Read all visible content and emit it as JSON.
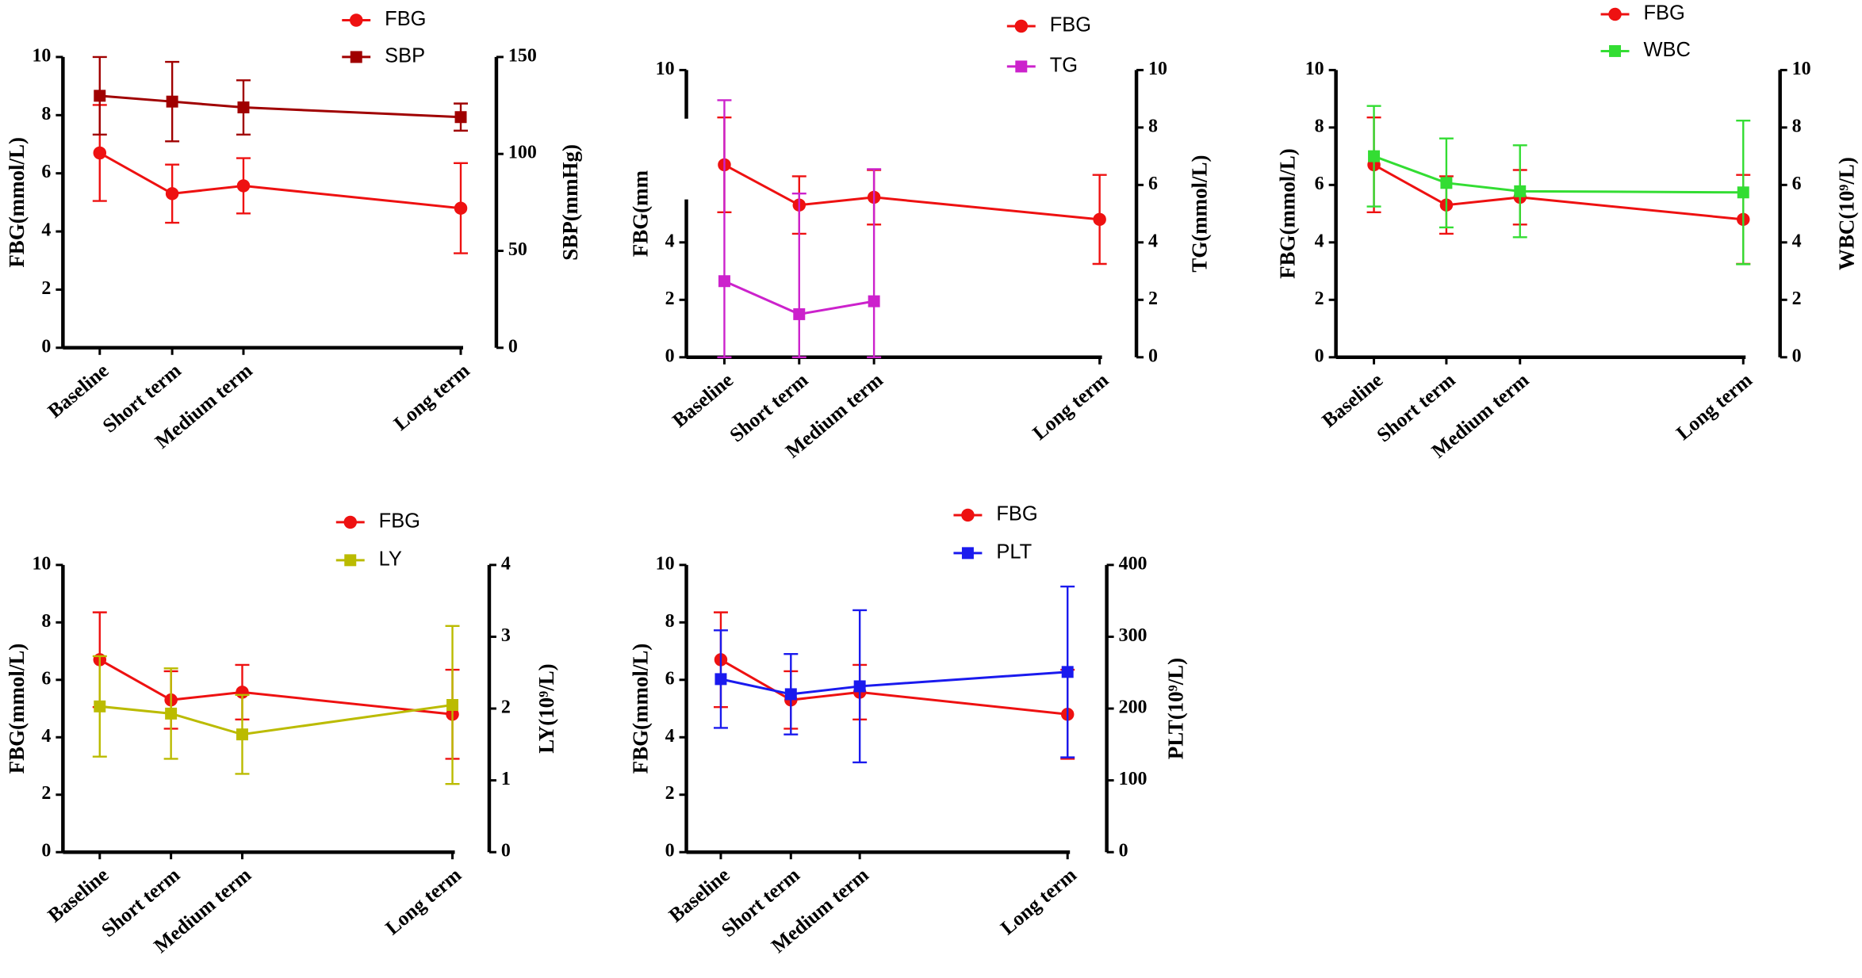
{
  "chart_data": [
    {
      "type": "line",
      "categories": [
        "Baseline",
        "Short term",
        "Medium term",
        "Long term"
      ],
      "ylabel": "FBG(mmol/L)",
      "y2label": "SBP(mmHg)",
      "ylim": [
        0,
        10
      ],
      "yticks": [
        0,
        2,
        4,
        6,
        8,
        10
      ],
      "y2lim": [
        0,
        150
      ],
      "y2ticks": [
        0,
        50,
        100,
        150
      ],
      "series": [
        {
          "name": "FBG",
          "color": "#ee1111",
          "marker": "circle",
          "values": [
            6.7,
            5.3,
            5.57,
            4.8
          ],
          "errors": [
            1.65,
            1.0,
            0.95,
            1.55
          ]
        },
        {
          "name": "SBP",
          "color": "#a00000",
          "marker": "square",
          "axis": "y2",
          "values": [
            130,
            127,
            124,
            119
          ],
          "errors": [
            20,
            20.5,
            14,
            7
          ]
        }
      ]
    },
    {
      "type": "line",
      "categories": [
        "Baseline",
        "Short term",
        "Medium term",
        "Long term"
      ],
      "ylabel": "FBG(mm",
      "y2label": "TG(mmol/L)",
      "ylim": [
        0,
        10
      ],
      "yticks": [
        0,
        2,
        4,
        10
      ],
      "y2lim": [
        0,
        10
      ],
      "y2ticks": [
        0,
        2,
        4,
        6,
        8,
        10
      ],
      "series": [
        {
          "name": "FBG",
          "color": "#ee1111",
          "marker": "circle",
          "values": [
            6.7,
            5.3,
            5.57,
            4.8
          ],
          "errors": [
            1.65,
            1.0,
            0.95,
            1.55
          ]
        },
        {
          "name": "TG",
          "color": "#cc22cc",
          "marker": "square",
          "axis": "y2",
          "values": [
            2.65,
            1.5,
            1.95,
            null
          ],
          "errors": [
            6.3,
            4.2,
            4.6,
            null
          ]
        }
      ]
    },
    {
      "type": "line",
      "categories": [
        "Baseline",
        "Short term",
        "Medium term",
        "Long term"
      ],
      "ylabel": "FBG(mmol/L)",
      "y2label": "WBC(10⁹/L)",
      "ylim": [
        0,
        10
      ],
      "yticks": [
        0,
        2,
        4,
        6,
        8,
        10
      ],
      "y2lim": [
        0,
        10
      ],
      "y2ticks": [
        0,
        2,
        4,
        6,
        8,
        10
      ],
      "series": [
        {
          "name": "FBG",
          "color": "#ee1111",
          "marker": "circle",
          "values": [
            6.7,
            5.3,
            5.57,
            4.8
          ],
          "errors": [
            1.65,
            1.0,
            0.95,
            1.55
          ]
        },
        {
          "name": "WBC",
          "color": "#33dd33",
          "marker": "square",
          "axis": "y2",
          "values": [
            7.0,
            6.07,
            5.78,
            5.74
          ],
          "errors": [
            1.75,
            1.55,
            1.6,
            2.5
          ]
        }
      ]
    },
    {
      "type": "line",
      "categories": [
        "Baseline",
        "Short term",
        "Medium term",
        "Long term"
      ],
      "ylabel": "FBG(mmol/L)",
      "y2label": "LY(10⁹/L)",
      "ylim": [
        0,
        10
      ],
      "yticks": [
        0,
        2,
        4,
        6,
        8,
        10
      ],
      "y2lim": [
        0,
        4
      ],
      "y2ticks": [
        0,
        1,
        2,
        3,
        4
      ],
      "series": [
        {
          "name": "FBG",
          "color": "#ee1111",
          "marker": "circle",
          "values": [
            6.7,
            5.3,
            5.57,
            4.8
          ],
          "errors": [
            1.65,
            1.0,
            0.95,
            1.55
          ]
        },
        {
          "name": "LY",
          "color": "#bbbb00",
          "marker": "square",
          "axis": "y2",
          "values": [
            2.03,
            1.93,
            1.64,
            2.05
          ],
          "errors": [
            0.7,
            0.63,
            0.55,
            1.1
          ]
        }
      ]
    },
    {
      "type": "line",
      "categories": [
        "Baseline",
        "Short term",
        "Medium term",
        "Long term"
      ],
      "ylabel": "FBG(mmol/L)",
      "y2label": "PLT(10⁹/L)",
      "ylim": [
        0,
        10
      ],
      "yticks": [
        0,
        2,
        4,
        6,
        8,
        10
      ],
      "y2lim": [
        0,
        400
      ],
      "y2ticks": [
        0,
        100,
        200,
        300,
        400
      ],
      "series": [
        {
          "name": "FBG",
          "color": "#ee1111",
          "marker": "circle",
          "values": [
            6.7,
            5.3,
            5.57,
            4.8
          ],
          "errors": [
            1.65,
            1.0,
            0.95,
            1.55
          ]
        },
        {
          "name": "PLT",
          "color": "#1a1aee",
          "marker": "square",
          "axis": "y2",
          "values": [
            241,
            220,
            231,
            251
          ],
          "errors": [
            68,
            56,
            106,
            119
          ]
        }
      ]
    }
  ]
}
